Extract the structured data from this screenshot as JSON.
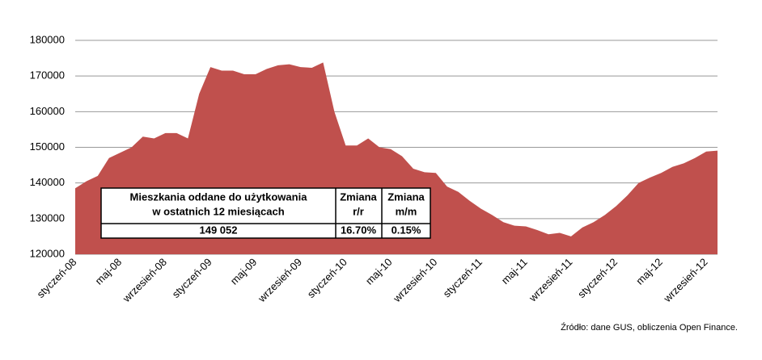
{
  "chart_data": {
    "type": "area",
    "color": "#c0504d",
    "categories": [
      "styczeń-08",
      null,
      null,
      null,
      "maj-08",
      null,
      null,
      null,
      "wrzesień-08",
      null,
      null,
      null,
      "styczeń-09",
      null,
      null,
      null,
      "maj-09",
      null,
      null,
      null,
      "wrzesień-09",
      null,
      null,
      null,
      "styczeń-10",
      null,
      null,
      null,
      "maj-10",
      null,
      null,
      null,
      "wrzesień-10",
      null,
      null,
      null,
      "styczeń-11",
      null,
      null,
      null,
      "maj-11",
      null,
      null,
      null,
      "wrzesień-11",
      null,
      null,
      null,
      "styczeń-12",
      null,
      null,
      null,
      "maj-12",
      null,
      null,
      null,
      "wrzesień-12",
      null
    ],
    "values": [
      138500,
      140500,
      142000,
      147000,
      148500,
      150000,
      153000,
      152500,
      154000,
      154000,
      152500,
      165000,
      172500,
      171500,
      171500,
      170500,
      170500,
      172000,
      173000,
      173300,
      172500,
      172300,
      173800,
      160000,
      150500,
      150500,
      152500,
      150000,
      149500,
      147500,
      144000,
      143000,
      142800,
      139000,
      137500,
      135000,
      132800,
      131000,
      129000,
      128000,
      127800,
      126800,
      125600,
      126000,
      125000,
      127500,
      129000,
      131000,
      133500,
      136500,
      140000,
      141500,
      142800,
      144500,
      145500,
      147000,
      148800,
      149052
    ],
    "ylim": [
      120000,
      180000
    ],
    "yticks": [
      120000,
      130000,
      140000,
      150000,
      160000,
      170000,
      180000
    ],
    "grid": true
  },
  "table": {
    "header": [
      "Mieszkania oddane do użytkowania",
      "w ostatnich 12 miesiącach",
      "Zmiana",
      "r/r",
      "Zmiana",
      "m/m"
    ],
    "row": [
      "149 052",
      "16.70%",
      "0.15%"
    ]
  },
  "source": "Źródło: dane GUS, obliczenia Open Finance."
}
